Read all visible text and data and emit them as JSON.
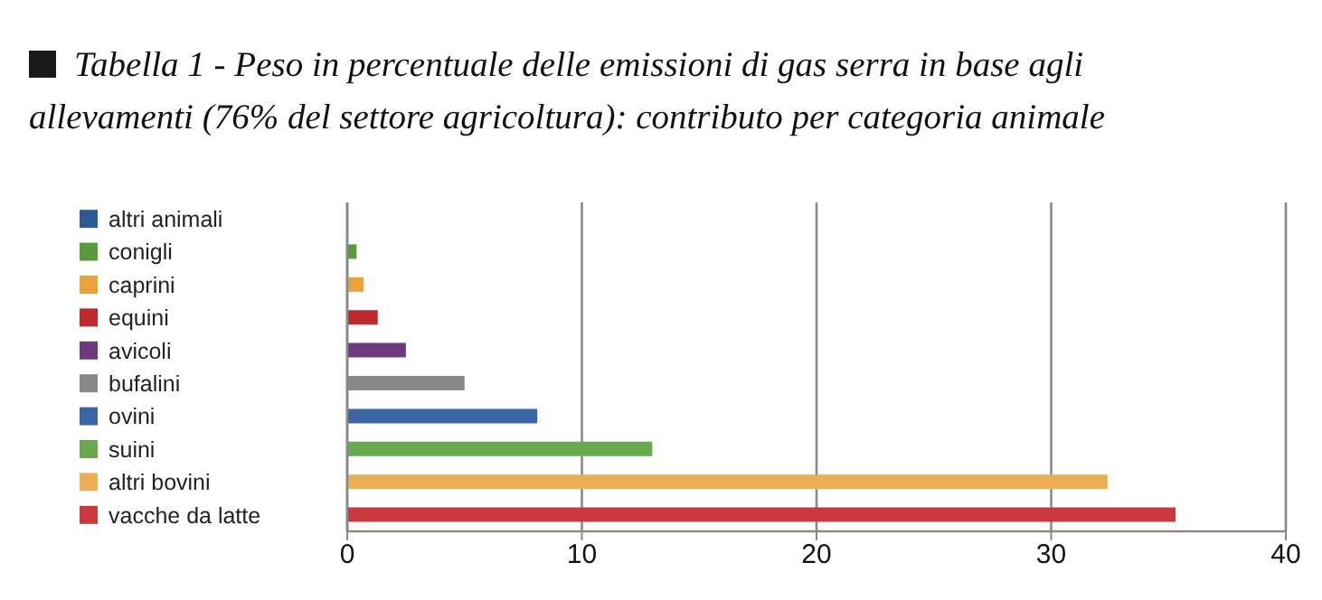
{
  "chart_data": {
    "type": "bar",
    "orientation": "horizontal",
    "title": "Tabella 1 - Peso in percentuale delle emissioni di gas serra in base agli allevamenti (76% del settore agricoltura): contributo per categoria animale",
    "categories": [
      "altri animali",
      "conigli",
      "caprini",
      "equini",
      "avicoli",
      "bufalini",
      "ovini",
      "suini",
      "altri bovini",
      "vacche da latte"
    ],
    "values": [
      0,
      0.4,
      0.7,
      1.3,
      2.5,
      5.0,
      8.1,
      13.0,
      32.4,
      35.3
    ],
    "colors": [
      "#2e5a94",
      "#5a9a3c",
      "#eaa23a",
      "#c0282d",
      "#6e3a7c",
      "#888888",
      "#3d66a4",
      "#6aa84f",
      "#ebae55",
      "#c8383c"
    ],
    "xlim": [
      0,
      40
    ],
    "xticks": [
      0,
      10,
      20,
      30,
      40
    ],
    "grid": "x"
  }
}
